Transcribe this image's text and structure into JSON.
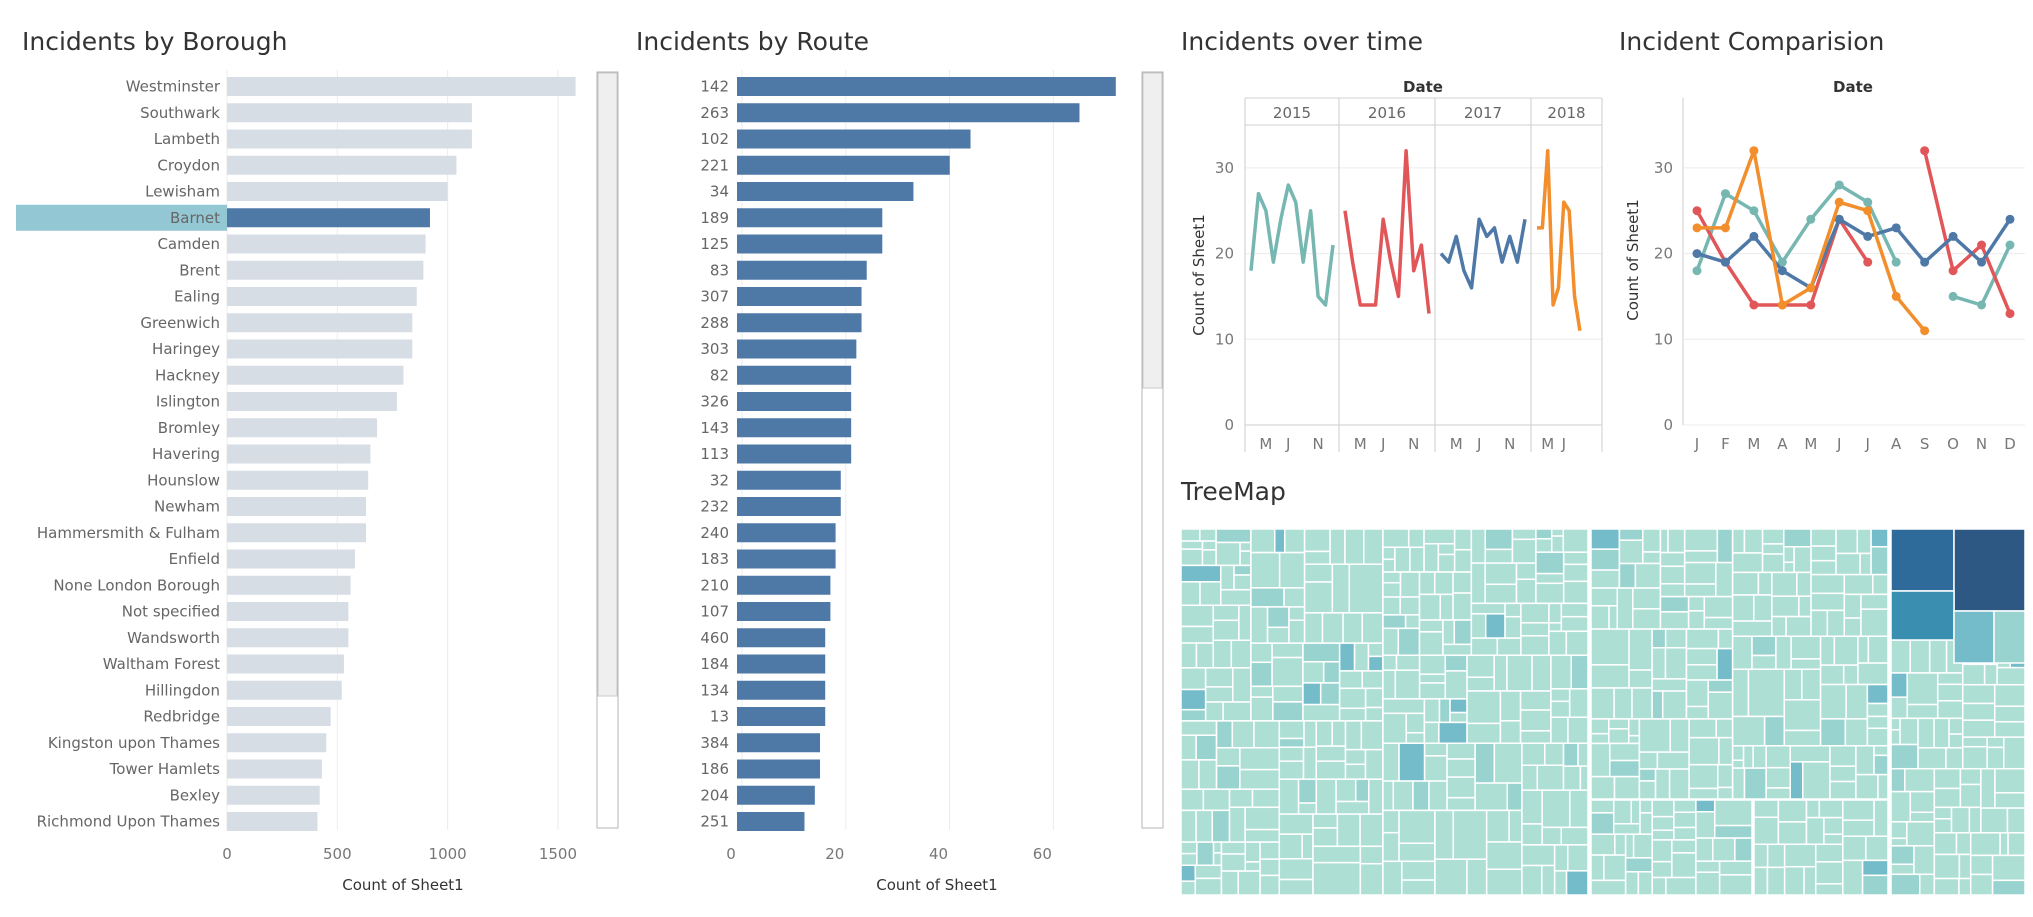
{
  "borough": {
    "title": "Incidents by Borough",
    "xlabel": "Count of Sheet1",
    "bar_color": "#d6dde5",
    "highlight_color": "#4e79a7",
    "highlight_row_color": "#94c7d4",
    "highlighted": "Barnet",
    "xticks": [
      0,
      500,
      1000,
      1500
    ],
    "xlim": [
      0,
      1600
    ]
  },
  "route": {
    "title": "Incidents by Route",
    "xlabel": "Count of Sheet1",
    "bar_color": "#4e79a7",
    "xticks": [
      0,
      20,
      40,
      60
    ],
    "xlim": [
      0,
      74
    ]
  },
  "time": {
    "title": "Incidents over time",
    "header": "Date",
    "ylabel": "Count of Sheet1",
    "yticks": [
      0,
      10,
      20,
      30
    ],
    "ylim": [
      0,
      35
    ]
  },
  "comparison": {
    "title": "Incident Comparision",
    "header": "Date",
    "ylabel": "Count of Sheet1",
    "yticks": [
      0,
      10,
      20,
      30
    ],
    "ylim": [
      0,
      35
    ]
  },
  "treemap": {
    "title": "TreeMap",
    "colors": [
      "#aedfd4",
      "#98d3cf",
      "#74bcc9",
      "#2f6b9a",
      "#2c5883"
    ]
  },
  "chart_data": [
    {
      "type": "bar",
      "title": "Incidents by Borough",
      "xlabel": "Count of Sheet1",
      "categories": [
        "Westminster",
        "Southwark",
        "Lambeth",
        "Croydon",
        "Lewisham",
        "Barnet",
        "Camden",
        "Brent",
        "Ealing",
        "Greenwich",
        "Haringey",
        "Hackney",
        "Islington",
        "Bromley",
        "Havering",
        "Hounslow",
        "Newham",
        "Hammersmith & Fulham",
        "Enfield",
        "None London Borough",
        "Not specified",
        "Wandsworth",
        "Waltham Forest",
        "Hillingdon",
        "Redbridge",
        "Kingston upon Thames",
        "Tower Hamlets",
        "Bexley",
        "Richmond Upon Thames"
      ],
      "values": [
        1580,
        1110,
        1110,
        1040,
        1000,
        920,
        900,
        890,
        860,
        840,
        840,
        800,
        770,
        680,
        650,
        640,
        630,
        630,
        580,
        560,
        550,
        550,
        530,
        520,
        470,
        450,
        430,
        420,
        410
      ],
      "xlim": [
        0,
        1600
      ]
    },
    {
      "type": "bar",
      "title": "Incidents by Route",
      "xlabel": "Count of Sheet1",
      "categories": [
        "142",
        "263",
        "102",
        "221",
        "34",
        "189",
        "125",
        "83",
        "307",
        "288",
        "303",
        "82",
        "326",
        "143",
        "113",
        "32",
        "232",
        "240",
        "183",
        "210",
        "107",
        "460",
        "184",
        "134",
        "13",
        "384",
        "186",
        "204",
        "251"
      ],
      "values": [
        73,
        66,
        45,
        41,
        34,
        28,
        28,
        25,
        24,
        24,
        23,
        22,
        22,
        22,
        22,
        20,
        20,
        19,
        19,
        18,
        18,
        17,
        17,
        17,
        17,
        16,
        16,
        15,
        13
      ],
      "xlim": [
        0,
        74
      ]
    },
    {
      "type": "line",
      "title": "Incidents over time",
      "header": "Date",
      "ylabel": "Count of Sheet1",
      "ylim": [
        0,
        35
      ],
      "panels": [
        {
          "year": "2015",
          "ticks": [
            "M",
            "J",
            "N"
          ],
          "tick_index": [
            2,
            5,
            9
          ],
          "color": "#76b7b2",
          "values": [
            18,
            27,
            25,
            19,
            24,
            28,
            26,
            19,
            25,
            15,
            14,
            21
          ]
        },
        {
          "year": "2016",
          "ticks": [
            "M",
            "J",
            "N"
          ],
          "tick_index": [
            2,
            5,
            9
          ],
          "color": "#e15759",
          "values": [
            25,
            19,
            14,
            14,
            14,
            24,
            19,
            15,
            32,
            18,
            21,
            13
          ]
        },
        {
          "year": "2017",
          "ticks": [
            "M",
            "J",
            "N"
          ],
          "tick_index": [
            2,
            5,
            9
          ],
          "color": "#4e79a7",
          "values": [
            20,
            19,
            22,
            18,
            16,
            24,
            22,
            23,
            19,
            22,
            19,
            24
          ]
        },
        {
          "year": "2018",
          "ticks": [
            "M",
            "J"
          ],
          "tick_index": [
            2,
            5
          ],
          "color": "#f28e2b",
          "values": [
            23,
            23,
            32,
            14,
            16,
            26,
            25,
            15,
            11
          ]
        }
      ]
    },
    {
      "type": "line",
      "title": "Incident Comparision",
      "header": "Date",
      "ylabel": "Count of Sheet1",
      "ylim": [
        0,
        35
      ],
      "categories": [
        "J",
        "F",
        "M",
        "A",
        "M",
        "J",
        "J",
        "A",
        "S",
        "O",
        "N",
        "D"
      ],
      "series": [
        {
          "color": "#76b7b2",
          "values": [
            18,
            27,
            25,
            19,
            24,
            28,
            26,
            19,
            null,
            15,
            14,
            21
          ]
        },
        {
          "color": "#e15759",
          "values": [
            25,
            19,
            14,
            14,
            14,
            24,
            19,
            null,
            32,
            18,
            21,
            13
          ]
        },
        {
          "color": "#4e79a7",
          "values": [
            20,
            19,
            22,
            18,
            16,
            24,
            22,
            23,
            19,
            22,
            19,
            24
          ]
        },
        {
          "color": "#f28e2b",
          "values": [
            23,
            23,
            32,
            14,
            16,
            26,
            25,
            15,
            11,
            null,
            null,
            null
          ]
        }
      ]
    }
  ]
}
